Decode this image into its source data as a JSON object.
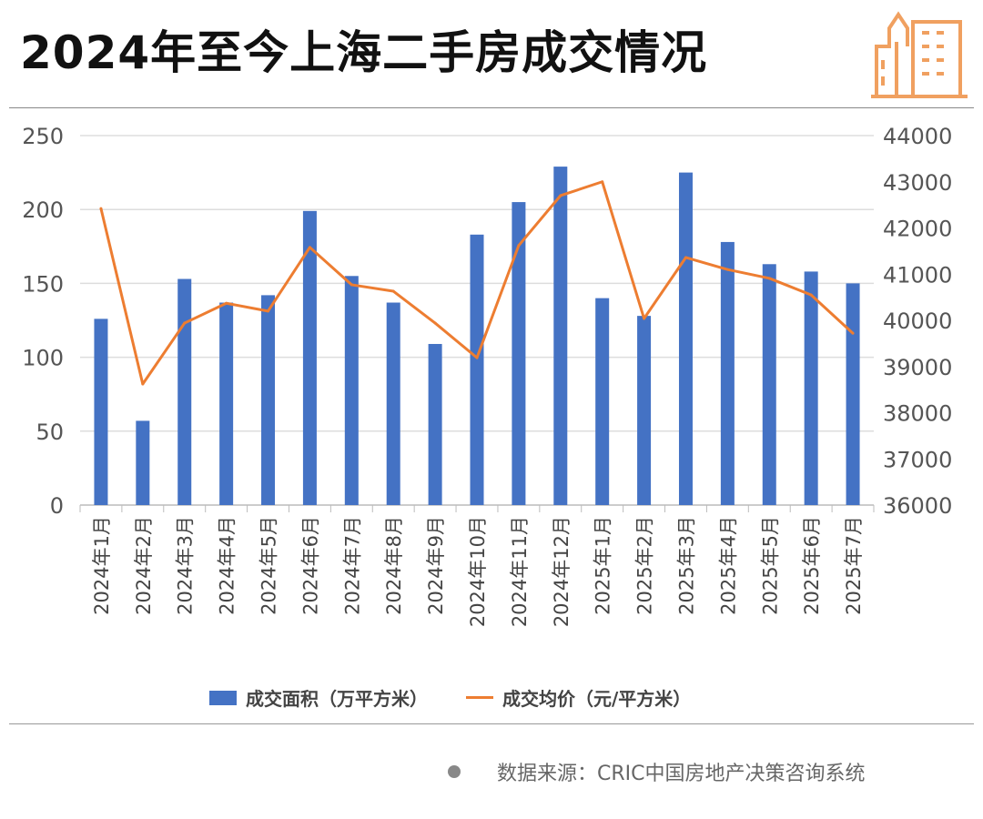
{
  "title": "2024年至今上海二手房成交情况",
  "source": "数据来源：CRIC中国房地产决策咨询系统",
  "colors": {
    "bar": "#4472c4",
    "line": "#ed7d31",
    "logo": "#f0a060"
  },
  "chart_data": {
    "type": "bar+line",
    "categories": [
      "2024年1月",
      "2024年2月",
      "2024年3月",
      "2024年4月",
      "2024年5月",
      "2024年6月",
      "2024年7月",
      "2024年8月",
      "2024年9月",
      "2024年10月",
      "2024年11月",
      "2024年12月",
      "2025年1月",
      "2025年2月",
      "2025年3月",
      "2025年4月",
      "2025年5月",
      "2025年6月",
      "2025年7月"
    ],
    "series": [
      {
        "name": "成交面积（万平方米）",
        "type": "bar",
        "axis": "left",
        "values": [
          126,
          57,
          153,
          137,
          142,
          199,
          155,
          137,
          109,
          183,
          205,
          229,
          140,
          128,
          225,
          178,
          163,
          158,
          150
        ]
      },
      {
        "name": "成交均价（元/平方米）",
        "type": "line",
        "axis": "right",
        "values": [
          42420,
          38620,
          39940,
          40370,
          40200,
          41580,
          40770,
          40630,
          39940,
          39190,
          41620,
          42700,
          43000,
          40040,
          41360,
          41100,
          40910,
          40550,
          39720
        ]
      }
    ],
    "ylim_left": [
      0,
      250
    ],
    "yticks_left": [
      "0",
      "50",
      "100",
      "150",
      "200",
      "250"
    ],
    "ylim_right": [
      36000,
      44000
    ],
    "yticks_right": [
      "36000",
      "37000",
      "38000",
      "39000",
      "40000",
      "41000",
      "42000",
      "43000",
      "44000"
    ],
    "grid": true,
    "legend": "bottom"
  }
}
